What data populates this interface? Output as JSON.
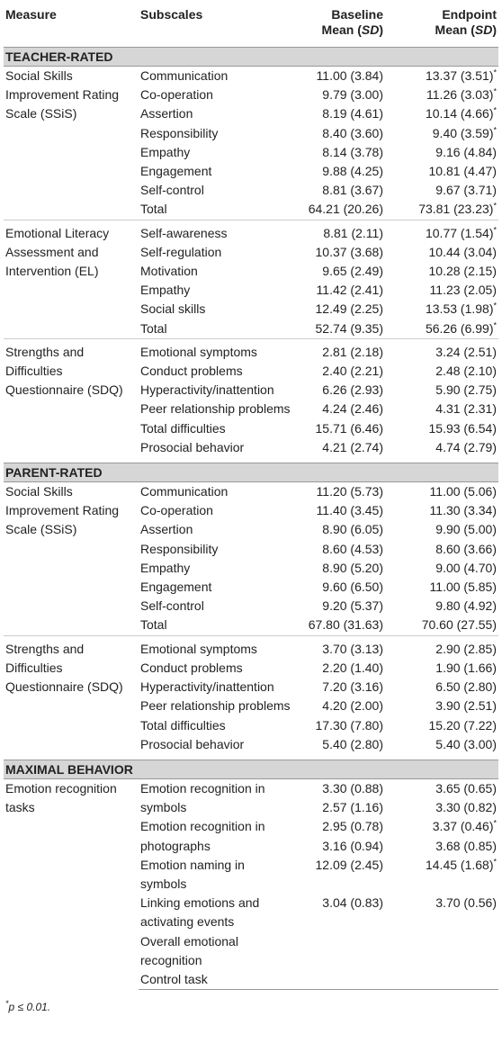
{
  "header": {
    "measure": "Measure",
    "subscales": "Subscales",
    "baseline": {
      "line1": "Baseline",
      "pre": "Mean (",
      "italic": "SD",
      "post": ")"
    },
    "endpoint": {
      "line1": "Endpoint",
      "pre": "Mean (",
      "italic": "SD",
      "post": ")"
    }
  },
  "sections": [
    {
      "title": "TEACHER-RATED",
      "groups": [
        {
          "measure": "Social Skills Improvement Rating Scale (SSiS)",
          "rows": [
            {
              "subscale": "Communication",
              "baseline": "11.00 (3.84)",
              "endpoint": "13.37 (3.51)",
              "note": "*"
            },
            {
              "subscale": "Co-operation",
              "baseline": "9.79 (3.00)",
              "endpoint": "11.26 (3.03)",
              "note": "*"
            },
            {
              "subscale": "Assertion",
              "baseline": "8.19 (4.61)",
              "endpoint": "10.14 (4.66)",
              "note": "*"
            },
            {
              "subscale": "Responsibility",
              "baseline": "8.40 (3.60)",
              "endpoint": "9.40 (3.59)",
              "note": "*"
            },
            {
              "subscale": "Empathy",
              "baseline": "8.14 (3.78)",
              "endpoint": "9.16 (4.84)"
            },
            {
              "subscale": "Engagement",
              "baseline": "9.88 (4.25)",
              "endpoint": "10.81 (4.47)"
            },
            {
              "subscale": "Self-control",
              "baseline": "8.81 (3.67)",
              "endpoint": "9.67 (3.71)"
            },
            {
              "subscale": "Total",
              "baseline": "64.21 (20.26)",
              "endpoint": "73.81 (23.23)",
              "note": "*"
            }
          ]
        },
        {
          "measure": "Emotional Literacy Assessment and Intervention (EL)",
          "rows": [
            {
              "subscale": "Self-awareness",
              "baseline": "8.81 (2.11)",
              "endpoint": "10.77 (1.54)",
              "note": "*"
            },
            {
              "subscale": "Self-regulation",
              "baseline": "10.37 (3.68)",
              "endpoint": "10.44 (3.04)"
            },
            {
              "subscale": "Motivation",
              "baseline": "9.65 (2.49)",
              "endpoint": "10.28 (2.15)"
            },
            {
              "subscale": "Empathy",
              "baseline": "11.42 (2.41)",
              "endpoint": "11.23 (2.05)"
            },
            {
              "subscale": "Social skills",
              "baseline": "12.49 (2.25)",
              "endpoint": "13.53 (1.98)",
              "note": "*"
            },
            {
              "subscale": "Total",
              "baseline": "52.74 (9.35)",
              "endpoint": "56.26 (6.99)",
              "note": "*"
            }
          ]
        },
        {
          "measure": "Strengths and Difficulties Questionnaire (SDQ)",
          "rows": [
            {
              "subscale": "Emotional symptoms",
              "baseline": "2.81 (2.18)",
              "endpoint": "3.24 (2.51)"
            },
            {
              "subscale": "Conduct problems",
              "baseline": "2.40 (2.21)",
              "endpoint": "2.48 (2.10)"
            },
            {
              "subscale": "Hyperactivity/inattention",
              "baseline": "6.26 (2.93)",
              "endpoint": "5.90 (2.75)"
            },
            {
              "subscale": "Peer relationship problems",
              "baseline": "4.24 (2.46)",
              "endpoint": "4.31 (2.31)"
            },
            {
              "subscale": "Total difficulties",
              "baseline": "15.71 (6.46)",
              "endpoint": "15.93 (6.54)"
            },
            {
              "subscale": "Prosocial behavior",
              "baseline": "4.21 (2.74)",
              "endpoint": "4.74 (2.79)"
            }
          ]
        }
      ]
    },
    {
      "title": "PARENT-RATED",
      "groups": [
        {
          "measure": "Social Skills Improvement Rating Scale (SSiS)",
          "rows": [
            {
              "subscale": "Communication",
              "baseline": "11.20 (5.73)",
              "endpoint": "11.00 (5.06)"
            },
            {
              "subscale": "Co-operation",
              "baseline": "11.40 (3.45)",
              "endpoint": "11.30 (3.34)"
            },
            {
              "subscale": "Assertion",
              "baseline": "8.90 (6.05)",
              "endpoint": "9.90 (5.00)"
            },
            {
              "subscale": "Responsibility",
              "baseline": "8.60 (4.53)",
              "endpoint": "8.60 (3.66)"
            },
            {
              "subscale": "Empathy",
              "baseline": "8.90 (5.20)",
              "endpoint": "9.00 (4.70)"
            },
            {
              "subscale": "Engagement",
              "baseline": "9.60 (6.50)",
              "endpoint": "11.00 (5.85)"
            },
            {
              "subscale": "Self-control",
              "baseline": "9.20 (5.37)",
              "endpoint": "9.80 (4.92)"
            },
            {
              "subscale": "Total",
              "baseline": "67.80 (31.63)",
              "endpoint": "70.60 (27.55)"
            }
          ]
        },
        {
          "measure": "Strengths and Difficulties Questionnaire (SDQ)",
          "rows": [
            {
              "subscale": "Emotional symptoms",
              "baseline": "3.70 (3.13)",
              "endpoint": "2.90 (2.85)"
            },
            {
              "subscale": "Conduct problems",
              "baseline": "2.20 (1.40)",
              "endpoint": "1.90 (1.66)"
            },
            {
              "subscale": "Hyperactivity/inattention",
              "baseline": "7.20 (3.16)",
              "endpoint": "6.50 (2.80)"
            },
            {
              "subscale": "Peer relationship problems",
              "baseline": "4.20 (2.00)",
              "endpoint": "3.90 (2.51)"
            },
            {
              "subscale": "Total difficulties",
              "baseline": "17.30 (7.80)",
              "endpoint": "15.20 (7.22)"
            },
            {
              "subscale": "Prosocial behavior",
              "baseline": "5.40 (2.80)",
              "endpoint": "5.40 (3.00)"
            }
          ]
        }
      ]
    },
    {
      "title": "MAXIMAL BEHAVIOR",
      "groups": [
        {
          "measure": "Emotion recognition tasks",
          "rows": [
            {
              "subscale": "Emotion recognition in",
              "baseline": "3.30 (0.88)",
              "endpoint": "3.65 (0.65)"
            },
            {
              "subscale": "symbols",
              "baseline": "2.57 (1.16)",
              "endpoint": "3.30 (0.82)"
            },
            {
              "subscale": "Emotion recognition in",
              "baseline": "2.95 (0.78)",
              "endpoint": "3.37 (0.46)",
              "note": "*"
            },
            {
              "subscale": "photographs",
              "baseline": "3.16 (0.94)",
              "endpoint": "3.68 (0.85)"
            },
            {
              "subscale": "Emotion naming in symbols",
              "baseline": "12.09 (2.45)",
              "endpoint": "14.45 (1.68)",
              "note": "*"
            },
            {
              "subscale": "Linking emotions and",
              "baseline": "3.04 (0.83)",
              "endpoint": "3.70 (0.56)"
            },
            {
              "subscale": "activating events"
            },
            {
              "subscale": "Overall emotional"
            },
            {
              "subscale": "recognition"
            },
            {
              "subscale": "Control task"
            }
          ]
        }
      ]
    }
  ],
  "footnote": {
    "mark": "*",
    "text": "p ≤ 0.01."
  }
}
